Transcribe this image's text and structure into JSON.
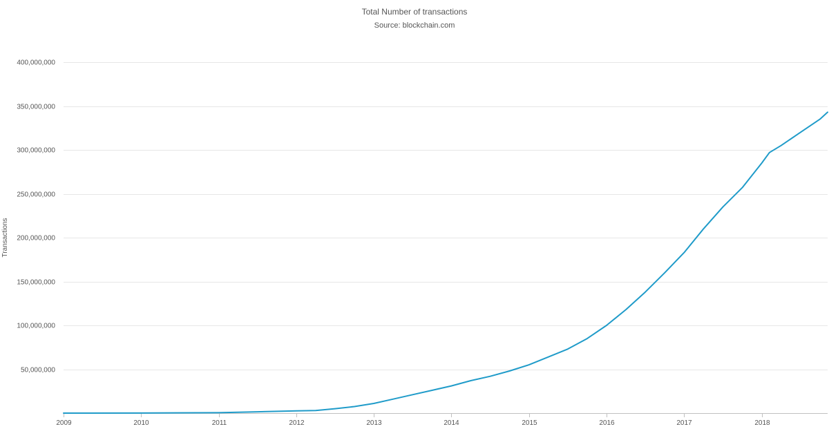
{
  "chart_data": {
    "type": "line",
    "title": "Total Number of transactions",
    "subtitle": "Source: blockchain.com",
    "xlabel": "",
    "ylabel": "Transactions",
    "xlim": [
      2009.0,
      2018.85
    ],
    "ylim": [
      0,
      400000000
    ],
    "x_ticks": [
      2009,
      2010,
      2011,
      2012,
      2013,
      2014,
      2015,
      2016,
      2017,
      2018
    ],
    "x_tick_labels": [
      "2009",
      "2010",
      "2011",
      "2012",
      "2013",
      "2014",
      "2015",
      "2016",
      "2017",
      "2018"
    ],
    "y_ticks": [
      50000000,
      100000000,
      150000000,
      200000000,
      250000000,
      300000000,
      350000000,
      400000000
    ],
    "y_tick_labels": [
      "50,000,000",
      "100,000,000",
      "150,000,000",
      "200,000,000",
      "250,000,000",
      "300,000,000",
      "350,000,000",
      "400,000,000"
    ],
    "grid": true,
    "legend": "none",
    "colors": {
      "line": "#1f9bc9",
      "grid": "#e6e6e6",
      "axis": "#c0c0c0",
      "text": "#555555"
    },
    "series": [
      {
        "x": [
          2009.0,
          2010.0,
          2011.0,
          2011.5,
          2012.0,
          2012.25,
          2012.5,
          2012.75,
          2013.0,
          2013.25,
          2013.5,
          2013.75,
          2014.0,
          2014.25,
          2014.5,
          2014.75,
          2015.0,
          2015.25,
          2015.5,
          2015.75,
          2016.0,
          2016.25,
          2016.5,
          2016.75,
          2017.0,
          2017.25,
          2017.5,
          2017.75,
          2018.0,
          2018.1,
          2018.25,
          2018.5,
          2018.75,
          2018.85
        ],
        "values": [
          0,
          100000,
          500000,
          1500000,
          2500000,
          3000000,
          5000000,
          7500000,
          11000000,
          16000000,
          21000000,
          26000000,
          31000000,
          37000000,
          42000000,
          48000000,
          55000000,
          64000000,
          73000000,
          85000000,
          100000000,
          118000000,
          138000000,
          160000000,
          183000000,
          210000000,
          235000000,
          257000000,
          285000000,
          297000000,
          305000000,
          320000000,
          335000000,
          343000000
        ]
      }
    ]
  }
}
